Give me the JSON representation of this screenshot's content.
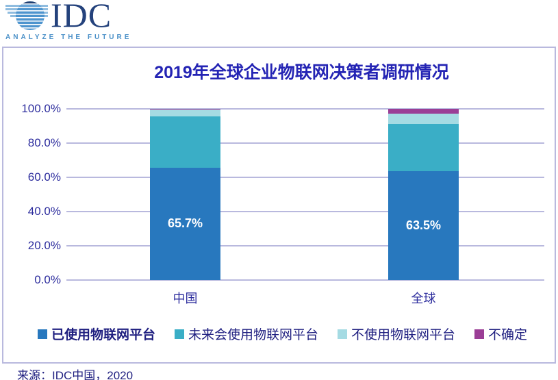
{
  "logo": {
    "brand": "IDC",
    "tagline": "ANALYZE THE FUTURE"
  },
  "chart": {
    "title": "2019年全球企业物联网决策者调研情况"
  },
  "chart_data": {
    "type": "bar",
    "stacked": true,
    "title": "2019年全球企业物联网决策者调研情况",
    "categories": [
      "中国",
      "全球"
    ],
    "series": [
      {
        "name": "已使用物联网平台",
        "color": "#2878BE",
        "values": [
          65.7,
          63.5
        ],
        "data_labels": [
          "65.7%",
          "63.5%"
        ],
        "bold_legend": true
      },
      {
        "name": "未来会使用物联网平台",
        "color": "#3AAEC6",
        "values": [
          29.9,
          27.9
        ]
      },
      {
        "name": "不使用物联网平台",
        "color": "#A5DBE3",
        "values": [
          4.0,
          5.8
        ]
      },
      {
        "name": "不确定",
        "color": "#9B3E96",
        "values": [
          0.4,
          2.8
        ]
      }
    ],
    "xlabel": "",
    "ylabel": "",
    "ylim": [
      0,
      100
    ],
    "yticks": [
      "0.0%",
      "20.0%",
      "40.0%",
      "60.0%",
      "80.0%",
      "100.0%"
    ],
    "grid": true,
    "legend_position": "bottom"
  },
  "source": "来源：IDC中国，2020",
  "colors": {
    "title": "#2424B4",
    "axis_text": "#2E2E9E",
    "grid": "#B9B9DE",
    "frame_border": "#B9B9DE",
    "legend_text": "#1F1F80",
    "logo_navy": "#24427C",
    "logo_tagline": "#4A90C8",
    "bar_label": "#FFFFFF"
  }
}
